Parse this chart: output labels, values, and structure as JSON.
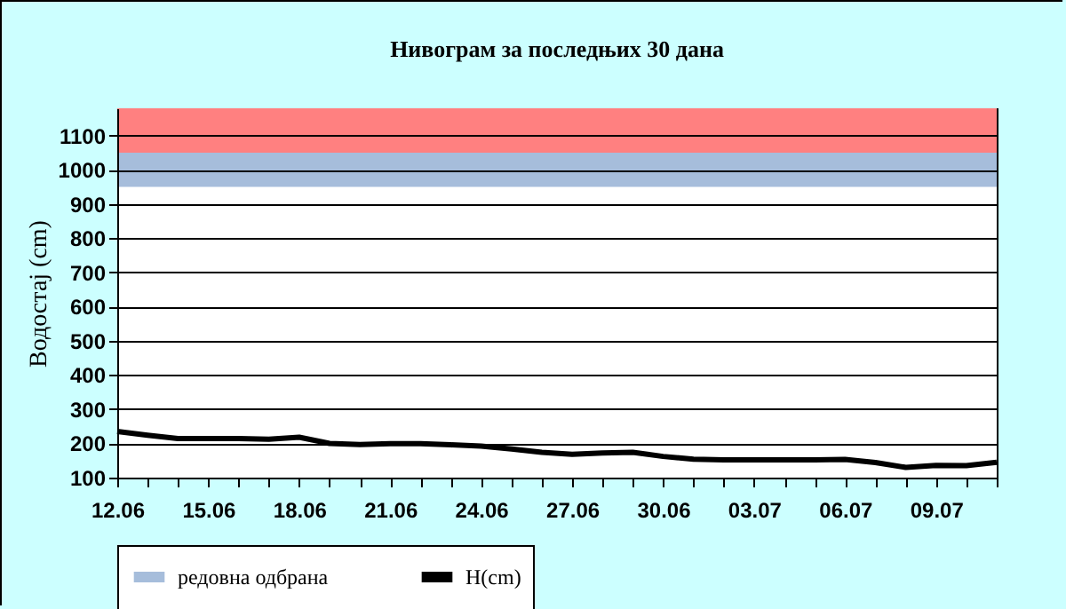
{
  "chart_data": {
    "type": "line",
    "title": "Нивограм за последњих 30 дана",
    "ylabel": "Водостај (cm)",
    "categories": [
      "12.06",
      null,
      null,
      "15.06",
      null,
      null,
      "18.06",
      null,
      null,
      "21.06",
      null,
      null,
      "24.06",
      null,
      null,
      "27.06",
      null,
      null,
      "30.06",
      null,
      null,
      "03.07",
      null,
      null,
      "06.07",
      null,
      null,
      "09.07",
      null,
      null
    ],
    "series": [
      {
        "name": "H(cm)",
        "color": "#000000",
        "values": [
          235,
          224,
          214,
          214,
          214,
          212,
          218,
          200,
          197,
          199,
          199,
          196,
          192,
          184,
          174,
          168,
          172,
          174,
          162,
          154,
          152,
          152,
          152,
          152,
          153,
          144,
          130,
          136,
          135,
          145
        ]
      }
    ],
    "bands": [
      {
        "axis": "y",
        "from": 1050,
        "to": 1180,
        "color": "#ff8080"
      },
      {
        "axis": "y",
        "from": 950,
        "to": 1050,
        "label": "редовна одбрана",
        "color": "#a6bddb"
      }
    ],
    "ylim": [
      100,
      1180
    ],
    "yticks": [
      100,
      200,
      300,
      400,
      500,
      600,
      700,
      800,
      900,
      1000,
      1100
    ],
    "grid": "y",
    "legend": "bottom"
  }
}
